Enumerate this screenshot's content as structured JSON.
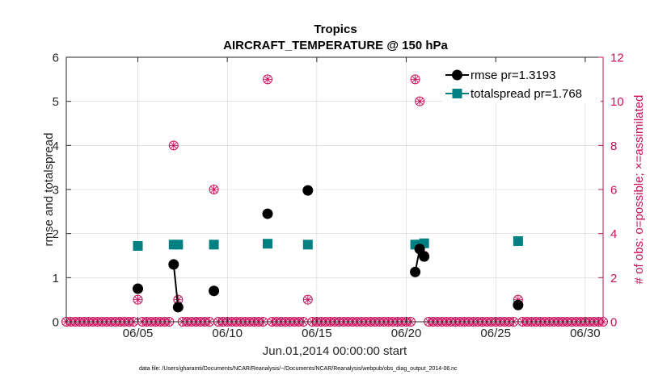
{
  "chart_data": {
    "type": "line",
    "title": "Tropics",
    "subtitle": "AIRCRAFT_TEMPERATURE @ 150 hPa",
    "xlabel": "Jun.01,2014 00:00:00 start",
    "ylabel": "rmse and totalspread",
    "ylabel_right": "# of obs: o=possible; ×=assimilated",
    "footnote": "data file: /Users/gharamti/Documents/NCAR/Reanalysis/~/Documents/NCAR/Reanalysis/webpub/obs_diag_output_2014-06.nc",
    "xlim": [
      1,
      31
    ],
    "ylim": [
      0,
      6
    ],
    "ylim_right": [
      0,
      12
    ],
    "x_ticks": [
      5,
      10,
      15,
      20,
      25,
      30
    ],
    "x_tick_labels": [
      "06/05",
      "06/10",
      "06/15",
      "06/20",
      "06/25",
      "06/30"
    ],
    "y_ticks": [
      0,
      1,
      2,
      3,
      4,
      5,
      6
    ],
    "y_tick_labels": [
      "0",
      "1",
      "2",
      "3",
      "4",
      "5",
      "6"
    ],
    "y_ticks_right": [
      0,
      2,
      4,
      6,
      8,
      10,
      12
    ],
    "y_tick_labels_right": [
      "0",
      "2",
      "4",
      "6",
      "8",
      "10",
      "12"
    ],
    "grid": true,
    "legend_position": "top-right",
    "series": [
      {
        "name": "rmse pr=1.3193",
        "color": "#000000",
        "marker": "circle",
        "points": [
          {
            "x": 5.0,
            "y": 0.75
          },
          {
            "x": 7.0,
            "y": 1.3
          },
          {
            "x": 7.25,
            "y": 0.33
          },
          {
            "x": 9.25,
            "y": 0.7
          },
          {
            "x": 12.25,
            "y": 2.45
          },
          {
            "x": 14.5,
            "y": 2.98
          },
          {
            "x": 20.5,
            "y": 1.13
          },
          {
            "x": 20.75,
            "y": 1.65
          },
          {
            "x": 21.0,
            "y": 1.48
          },
          {
            "x": 26.25,
            "y": 0.38
          }
        ],
        "segments": [
          [
            1,
            2
          ],
          [
            6,
            7,
            8
          ]
        ]
      },
      {
        "name": "totalspread pr=1.768",
        "color": "#008080",
        "marker": "square",
        "points": [
          {
            "x": 5.0,
            "y": 1.72
          },
          {
            "x": 7.0,
            "y": 1.75
          },
          {
            "x": 7.25,
            "y": 1.75
          },
          {
            "x": 9.25,
            "y": 1.75
          },
          {
            "x": 12.25,
            "y": 1.77
          },
          {
            "x": 14.5,
            "y": 1.75
          },
          {
            "x": 20.5,
            "y": 1.75
          },
          {
            "x": 20.75,
            "y": 1.75
          },
          {
            "x": 21.0,
            "y": 1.78
          },
          {
            "x": 26.25,
            "y": 1.83
          }
        ],
        "segments": [
          [
            1,
            2
          ],
          [
            6,
            7,
            8
          ]
        ]
      },
      {
        "name": "obs possible / assimilated",
        "axis": "right",
        "color": "#cc0f5a",
        "marker": "circle-x",
        "x_start": 1.0,
        "x_step": 0.25,
        "nonzero": [
          {
            "x": 5.0,
            "y": 1
          },
          {
            "x": 7.0,
            "y": 8
          },
          {
            "x": 7.25,
            "y": 1
          },
          {
            "x": 9.25,
            "y": 6
          },
          {
            "x": 12.25,
            "y": 11
          },
          {
            "x": 14.5,
            "y": 1
          },
          {
            "x": 20.5,
            "y": 11
          },
          {
            "x": 20.75,
            "y": 10
          },
          {
            "x": 21.0,
            "y": 3
          },
          {
            "x": 26.25,
            "y": 1
          }
        ],
        "default_value": 0
      }
    ]
  },
  "colors": {
    "axis": "#262626",
    "grid": "#d4d4d4",
    "right_axis": "#cc0f5a"
  }
}
